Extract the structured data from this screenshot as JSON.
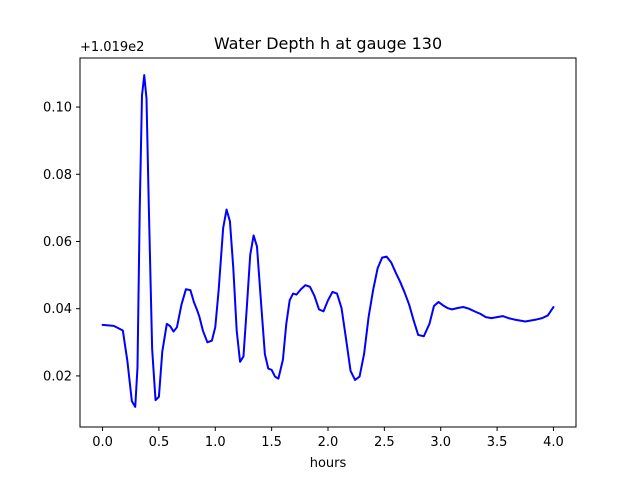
{
  "chart_data": {
    "type": "line",
    "title": "Water Depth h at gauge 130",
    "xlabel": "hours",
    "ylabel": "",
    "y_offset_label": "+1.019e2",
    "y_offset": 101.9,
    "xlim": [
      -0.2,
      4.2
    ],
    "ylim": [
      0.0048,
      0.1146
    ],
    "grid": false,
    "x_ticks": [
      0.0,
      0.5,
      1.0,
      1.5,
      2.0,
      2.5,
      3.0,
      3.5,
      4.0
    ],
    "x_tick_labels": [
      "0.0",
      "0.5",
      "1.0",
      "1.5",
      "2.0",
      "2.5",
      "3.0",
      "3.5",
      "4.0"
    ],
    "y_ticks": [
      0.02,
      0.04,
      0.06,
      0.08,
      0.1
    ],
    "y_tick_labels": [
      "0.02",
      "0.04",
      "0.06",
      "0.08",
      "0.10"
    ],
    "series": [
      {
        "color": "#0000ff",
        "x": [
          0.0,
          0.1,
          0.18,
          0.22,
          0.26,
          0.29,
          0.31,
          0.33,
          0.35,
          0.37,
          0.39,
          0.41,
          0.44,
          0.47,
          0.5,
          0.53,
          0.57,
          0.6,
          0.63,
          0.66,
          0.7,
          0.74,
          0.78,
          0.81,
          0.84,
          0.86,
          0.89,
          0.93,
          0.97,
          1.0,
          1.03,
          1.07,
          1.1,
          1.13,
          1.16,
          1.19,
          1.22,
          1.25,
          1.28,
          1.31,
          1.34,
          1.37,
          1.41,
          1.44,
          1.47,
          1.5,
          1.53,
          1.56,
          1.6,
          1.63,
          1.66,
          1.69,
          1.72,
          1.76,
          1.8,
          1.84,
          1.88,
          1.92,
          1.96,
          2.0,
          2.04,
          2.08,
          2.12,
          2.16,
          2.2,
          2.24,
          2.28,
          2.32,
          2.36,
          2.4,
          2.44,
          2.48,
          2.52,
          2.56,
          2.6,
          2.64,
          2.68,
          2.72,
          2.76,
          2.8,
          2.85,
          2.9,
          2.94,
          2.98,
          3.02,
          3.06,
          3.1,
          3.15,
          3.2,
          3.25,
          3.3,
          3.35,
          3.4,
          3.45,
          3.5,
          3.55,
          3.6,
          3.65,
          3.7,
          3.75,
          3.8,
          3.85,
          3.9,
          3.95,
          4.0
        ],
        "y": [
          0.0352,
          0.0349,
          0.0335,
          0.0245,
          0.0125,
          0.0108,
          0.0225,
          0.07,
          0.1035,
          0.1095,
          0.1025,
          0.071,
          0.028,
          0.0128,
          0.0138,
          0.0272,
          0.0355,
          0.0348,
          0.0332,
          0.0345,
          0.0412,
          0.0458,
          0.0455,
          0.042,
          0.0395,
          0.0375,
          0.0335,
          0.03,
          0.0305,
          0.0345,
          0.0455,
          0.064,
          0.0695,
          0.066,
          0.052,
          0.0335,
          0.0242,
          0.0258,
          0.0405,
          0.056,
          0.0618,
          0.0585,
          0.04,
          0.0265,
          0.0222,
          0.0218,
          0.0198,
          0.0192,
          0.0248,
          0.0355,
          0.0425,
          0.0445,
          0.0442,
          0.0458,
          0.047,
          0.0465,
          0.0438,
          0.0398,
          0.0392,
          0.0425,
          0.045,
          0.0445,
          0.0402,
          0.031,
          0.0215,
          0.0188,
          0.0198,
          0.0265,
          0.0375,
          0.0455,
          0.052,
          0.0552,
          0.0555,
          0.0538,
          0.0508,
          0.048,
          0.0448,
          0.0412,
          0.0365,
          0.0322,
          0.0318,
          0.0355,
          0.0408,
          0.042,
          0.041,
          0.0402,
          0.0398,
          0.0402,
          0.0405,
          0.04,
          0.0392,
          0.0385,
          0.0375,
          0.0372,
          0.0375,
          0.0378,
          0.0372,
          0.0368,
          0.0365,
          0.0362,
          0.0365,
          0.0368,
          0.0372,
          0.038,
          0.0405
        ]
      }
    ]
  }
}
